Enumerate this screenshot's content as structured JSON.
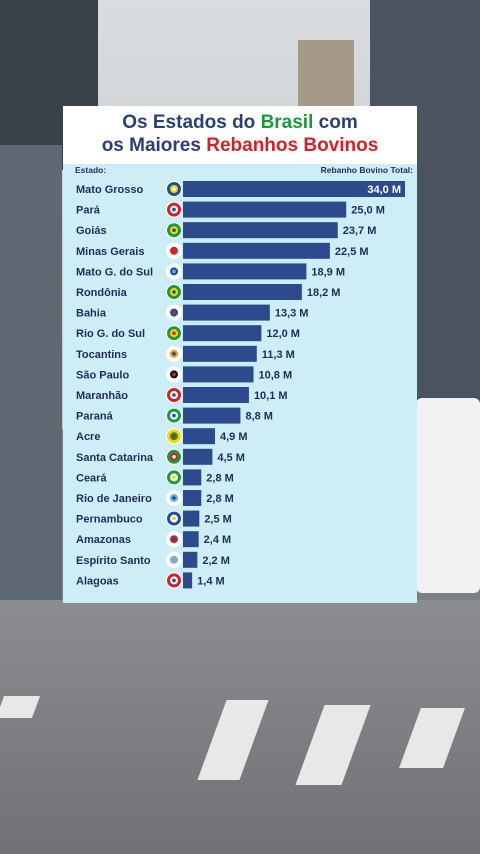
{
  "title_line1_pre": "Os Estados do ",
  "title_line1_brand": "Brasil",
  "title_line1_post": " com",
  "title_line2_pre": "os Maiores ",
  "title_line2_brand": "Rebanhos Bovinos",
  "col_state_label": "Estado:",
  "col_value_label": "Rebanho Bovino Total:",
  "colors": {
    "title": "#2b3f74",
    "green": "#199b3b",
    "red": "#d71f25",
    "bar": "#2c4a8c",
    "panel": "#cdeef7",
    "label": "#1f2d55"
  },
  "chart_data": {
    "type": "bar",
    "orientation": "horizontal",
    "unit": "M",
    "categories": [
      "Mato Grosso",
      "Pará",
      "Goiás",
      "Minas Gerais",
      "Mato G. do Sul",
      "Rondônia",
      "Bahia",
      "Rio G. do Sul",
      "Tocantins",
      "São Paulo",
      "Maranhão",
      "Paraná",
      "Acre",
      "Santa Catarina",
      "Ceará",
      "Rio de Janeiro",
      "Pernambuco",
      "Amazonas",
      "Espírito Santo",
      "Alagoas"
    ],
    "values": [
      34.0,
      25.0,
      23.7,
      22.5,
      18.9,
      18.2,
      13.3,
      12.0,
      11.3,
      10.8,
      10.1,
      8.8,
      4.9,
      4.5,
      2.8,
      2.8,
      2.5,
      2.4,
      2.2,
      1.4
    ],
    "value_labels": [
      "34,0 M",
      "25,0 M",
      "23,7 M",
      "22,5 M",
      "18,9 M",
      "18,2 M",
      "13,3 M",
      "12,0 M",
      "11,3 M",
      "10,8 M",
      "10,1 M",
      "8,8 M",
      "4,9 M",
      "4,5 M",
      "2,8 M",
      "2,8 M",
      "2,5 M",
      "2,4 M",
      "2,2 M",
      "1,4 M"
    ],
    "flag_icons": [
      "flag-mato-grosso-icon",
      "flag-para-icon",
      "flag-goias-icon",
      "flag-minas-gerais-icon",
      "flag-mato-grosso-do-sul-icon",
      "flag-rondonia-icon",
      "flag-bahia-icon",
      "flag-rio-grande-do-sul-icon",
      "flag-tocantins-icon",
      "flag-sao-paulo-icon",
      "flag-maranhao-icon",
      "flag-parana-icon",
      "flag-acre-icon",
      "flag-santa-catarina-icon",
      "flag-ceara-icon",
      "flag-rio-de-janeiro-icon",
      "flag-pernambuco-icon",
      "flag-amazonas-icon",
      "flag-espirito-santo-icon",
      "flag-alagoas-icon"
    ],
    "flag_colors": [
      [
        "#1b4fa0",
        "#ffd400",
        "#ffffff"
      ],
      [
        "#d71f25",
        "#ffffff",
        "#1b4fa0"
      ],
      [
        "#199b3b",
        "#ffd400",
        "#1b4fa0"
      ],
      [
        "#ffffff",
        "#d71f25",
        "#d71f25"
      ],
      [
        "#ffffff",
        "#1b4fa0",
        "#5fb6e8"
      ],
      [
        "#199b3b",
        "#ffd400",
        "#1b4fa0"
      ],
      [
        "#ffffff",
        "#1b4fa0",
        "#d71f25"
      ],
      [
        "#199b3b",
        "#ffd400",
        "#d71f25"
      ],
      [
        "#ffffff",
        "#f29a19",
        "#1b4fa0"
      ],
      [
        "#ffffff",
        "#111111",
        "#d71f25"
      ],
      [
        "#d71f25",
        "#ffffff",
        "#1b4fa0"
      ],
      [
        "#199b3b",
        "#ffffff",
        "#1b4fa0"
      ],
      [
        "#ffd400",
        "#199b3b",
        "#d71f25"
      ],
      [
        "#199b3b",
        "#d71f25",
        "#ffffff"
      ],
      [
        "#199b3b",
        "#ffffff",
        "#ffd400"
      ],
      [
        "#ffffff",
        "#5fb6e8",
        "#1b4fa0"
      ],
      [
        "#1b4fa0",
        "#ffffff",
        "#ffd400"
      ],
      [
        "#ffffff",
        "#d71f25",
        "#1b4fa0"
      ],
      [
        "#ffffff",
        "#5fb6e8",
        "#e57fb0"
      ],
      [
        "#d71f25",
        "#ffffff",
        "#1b4fa0"
      ]
    ],
    "xlim": [
      0,
      34.0
    ],
    "title": "Os Estados do Brasil com os Maiores Rebanhos Bovinos",
    "xlabel": "Rebanho Bovino Total:",
    "ylabel": "Estado:",
    "grid": false,
    "legend": "none"
  }
}
